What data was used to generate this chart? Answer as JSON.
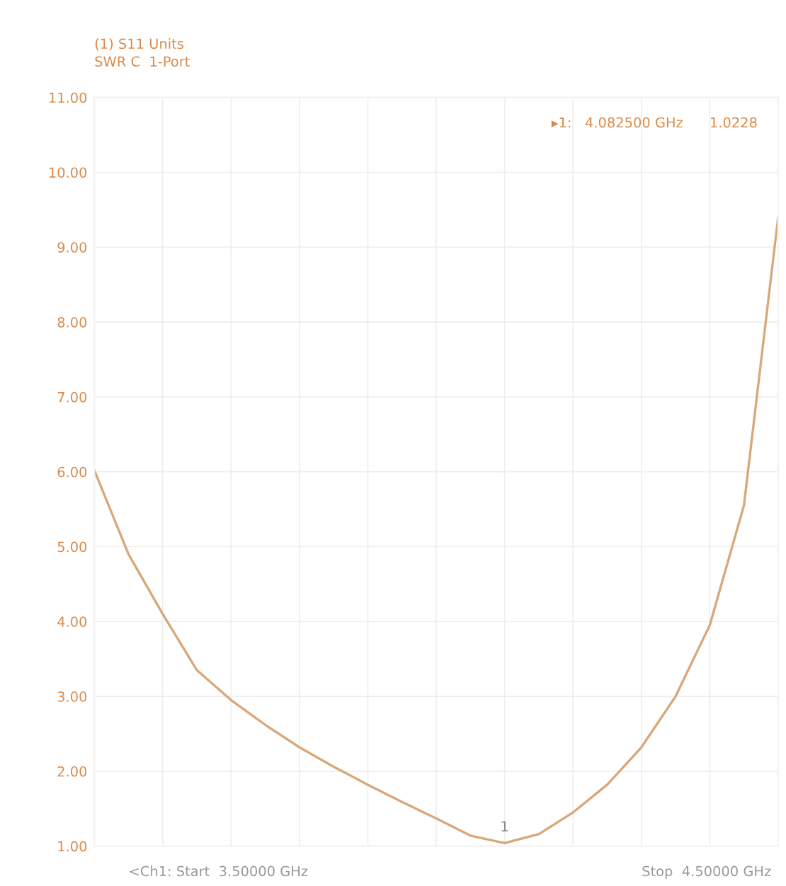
{
  "chart_data": {
    "type": "line",
    "title": "(1) S11 Units",
    "subtitle": "SWR C  1-Port",
    "categories": [
      null,
      null,
      null,
      null,
      null,
      null,
      null,
      null,
      null,
      null,
      null,
      null,
      null,
      null,
      null,
      null,
      null,
      null,
      null,
      null,
      null
    ],
    "series": [
      {
        "color": "#d9a77a",
        "values": [
          6.02,
          4.9,
          4.1,
          3.35,
          2.95,
          2.62,
          2.32,
          2.06,
          1.82,
          1.59,
          1.37,
          1.14,
          1.04,
          1.16,
          1.45,
          1.82,
          2.32,
          3.0,
          3.95,
          5.55,
          9.4
        ]
      }
    ],
    "ylim": [
      1,
      11
    ],
    "yticks": [
      {
        "value": 1,
        "label": "1.00"
      },
      {
        "value": 2,
        "label": "2.00"
      },
      {
        "value": 3,
        "label": "3.00"
      },
      {
        "value": 4,
        "label": "4.00"
      },
      {
        "value": 5,
        "label": "5.00"
      },
      {
        "value": 6,
        "label": "6.00"
      },
      {
        "value": 7,
        "label": "7.00"
      },
      {
        "value": 8,
        "label": "8.00"
      },
      {
        "value": 9,
        "label": "9.00"
      },
      {
        "value": 10,
        "label": "10.00"
      },
      {
        "value": 11,
        "label": "11.00"
      }
    ],
    "tick_labels": "y",
    "grid": true,
    "annotations": [
      "1",
      "▸1:   4.082500 GHz      1.0228",
      "<Ch1: Start  3.50000 GHz",
      "Stop  4.50000 GHz"
    ]
  }
}
